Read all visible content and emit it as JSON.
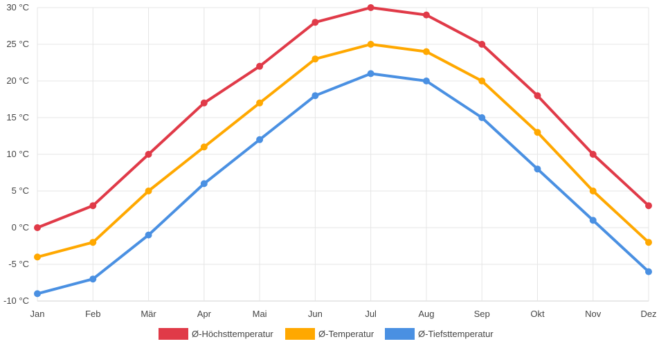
{
  "chart_data": {
    "type": "line",
    "categories": [
      "Jan",
      "Feb",
      "Mär",
      "Apr",
      "Mai",
      "Jun",
      "Jul",
      "Aug",
      "Sep",
      "Okt",
      "Nov",
      "Dez"
    ],
    "ylim": [
      -10,
      30
    ],
    "yticks": [
      -10,
      -5,
      0,
      5,
      10,
      15,
      20,
      25,
      30
    ],
    "ytick_labels": [
      "-10 °C",
      "-5 °C",
      "0 °C",
      "5 °C",
      "10 °C",
      "15 °C",
      "20 °C",
      "25 °C",
      "30 °C"
    ],
    "grid": true,
    "legend_position": "bottom",
    "series": [
      {
        "name": "Ø-Höchsttemperatur",
        "color": "#e03a48",
        "values": [
          0,
          3,
          10,
          17,
          22,
          28,
          30,
          29,
          25,
          18,
          10,
          3
        ]
      },
      {
        "name": "Ø-Temperatur",
        "color": "#ffa800",
        "values": [
          -4,
          -2,
          5,
          11,
          17,
          23,
          25,
          24,
          20,
          13,
          5,
          -2
        ]
      },
      {
        "name": "Ø-Tiefsttemperatur",
        "color": "#4a90e2",
        "values": [
          -9,
          -7,
          -1,
          6,
          12,
          18,
          21,
          20,
          15,
          8,
          1,
          -6
        ]
      }
    ]
  }
}
